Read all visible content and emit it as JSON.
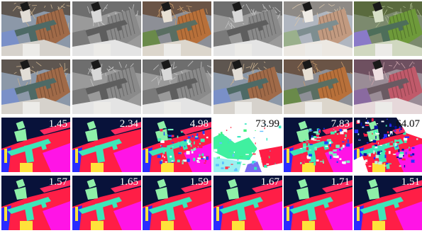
{
  "grid": {
    "rows": 4,
    "cols": 6
  },
  "rows": [
    {
      "kind": "photo",
      "cells": [
        {
          "variant": "blend",
          "score": ""
        },
        {
          "variant": "gray",
          "score": ""
        },
        {
          "variant": "warm",
          "score": ""
        },
        {
          "variant": "gray",
          "score": ""
        },
        {
          "variant": "pale",
          "score": ""
        },
        {
          "variant": "green",
          "score": ""
        }
      ]
    },
    {
      "kind": "photo",
      "cells": [
        {
          "variant": "blend",
          "score": ""
        },
        {
          "variant": "gray",
          "score": ""
        },
        {
          "variant": "gray",
          "score": ""
        },
        {
          "variant": "blend",
          "score": ""
        },
        {
          "variant": "warm",
          "score": ""
        },
        {
          "variant": "pink",
          "score": ""
        }
      ]
    },
    {
      "kind": "flow",
      "cells": [
        {
          "variant": "clean",
          "score": "1.45",
          "text_color": "#ffffff"
        },
        {
          "variant": "clean",
          "score": "2.34",
          "text_color": "#ffffff"
        },
        {
          "variant": "noisy",
          "score": "4.98",
          "text_color": "#ffffff"
        },
        {
          "variant": "white",
          "score": "73.99",
          "text_color": "#111111"
        },
        {
          "variant": "noisy",
          "score": "7.83",
          "text_color": "#ffffff"
        },
        {
          "variant": "messy",
          "score": "64.07",
          "text_color": "#111111"
        }
      ]
    },
    {
      "kind": "flow",
      "cells": [
        {
          "variant": "clean",
          "score": "1.57",
          "text_color": "#ffffff"
        },
        {
          "variant": "clean",
          "score": "1.65",
          "text_color": "#ffffff"
        },
        {
          "variant": "clean",
          "score": "1.59",
          "text_color": "#ffffff"
        },
        {
          "variant": "clean",
          "score": "1.67",
          "text_color": "#ffffff"
        },
        {
          "variant": "clean",
          "score": "1.71",
          "text_color": "#ffffff"
        },
        {
          "variant": "clean",
          "score": "1.51",
          "text_color": "#ffffff"
        }
      ]
    }
  ],
  "palette": {
    "flow_red": "#ff1e46",
    "flow_magenta": "#ff14e6",
    "flow_dark": "#08123a",
    "flow_blue": "#2a2cff",
    "flow_cyan": "#3ee6b8",
    "flow_mint": "#8ef0a8",
    "flow_yellow": "#ffe23a",
    "photo_sky": "#8c98a8",
    "photo_brick": "#b8703a",
    "photo_twig": "#c79a6a"
  }
}
